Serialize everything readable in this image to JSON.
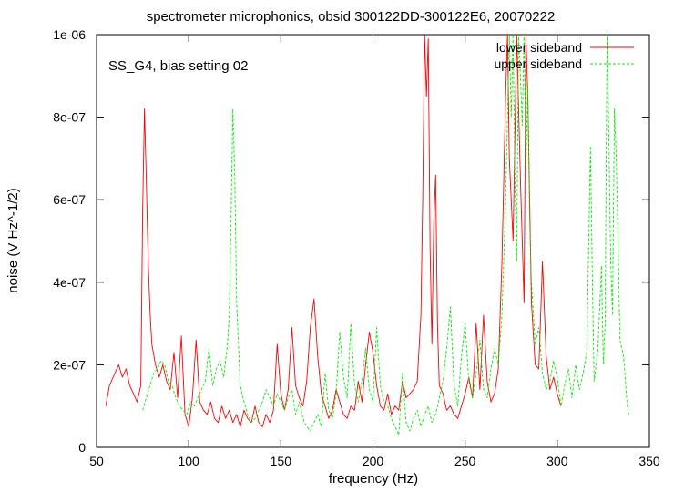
{
  "chart_data": {
    "type": "line",
    "title": "spectrometer microphonics, obsid 300122DD-300122E6, 20070222",
    "annotation": "SS_G4, bias setting 02",
    "xlabel": "frequency (Hz)",
    "ylabel": "noise (V Hz^-1/2)",
    "xlim": [
      50,
      350
    ],
    "ylim": [
      0,
      1e-06
    ],
    "x_ticks": [
      50,
      100,
      150,
      200,
      250,
      300,
      350
    ],
    "x_tick_labels": [
      "50",
      "100",
      "150",
      "200",
      "250",
      "300",
      "350"
    ],
    "y_ticks": [
      0,
      2e-07,
      4e-07,
      6e-07,
      8e-07,
      1e-06
    ],
    "y_tick_labels": [
      "0",
      "2e-07",
      "4e-07",
      "6e-07",
      "8e-07",
      "1e-06"
    ],
    "grid": false,
    "legend_position": "top-right",
    "series": [
      {
        "name": "lower sideband",
        "color": "#ff0000",
        "dashed": false,
        "points": [
          [
            55,
            1e-07
          ],
          [
            57,
            1.5e-07
          ],
          [
            60,
            1.8e-07
          ],
          [
            62,
            2e-07
          ],
          [
            64,
            1.7e-07
          ],
          [
            66,
            1.9e-07
          ],
          [
            68,
            1.5e-07
          ],
          [
            70,
            1.3e-07
          ],
          [
            72,
            1.1e-07
          ],
          [
            74,
            1.5e-07
          ],
          [
            75,
            5.7e-07
          ],
          [
            76,
            8.2e-07
          ],
          [
            77,
            6.5e-07
          ],
          [
            78,
            4.5e-07
          ],
          [
            79,
            3.3e-07
          ],
          [
            80,
            2.5e-07
          ],
          [
            82,
            2e-07
          ],
          [
            84,
            1.7e-07
          ],
          [
            86,
            2e-07
          ],
          [
            88,
            1.6e-07
          ],
          [
            90,
            1.4e-07
          ],
          [
            92,
            2.3e-07
          ],
          [
            94,
            1.2e-07
          ],
          [
            96,
            2.7e-07
          ],
          [
            98,
            8e-08
          ],
          [
            100,
            5e-08
          ],
          [
            102,
            1.2e-07
          ],
          [
            104,
            2.6e-07
          ],
          [
            106,
            1.1e-07
          ],
          [
            108,
            9e-08
          ],
          [
            110,
            8e-08
          ],
          [
            112,
            1.1e-07
          ],
          [
            114,
            7e-08
          ],
          [
            116,
            6e-08
          ],
          [
            118,
            1e-07
          ],
          [
            120,
            7e-08
          ],
          [
            122,
            9e-08
          ],
          [
            124,
            6e-08
          ],
          [
            126,
            8e-08
          ],
          [
            128,
            5e-08
          ],
          [
            130,
            9e-08
          ],
          [
            132,
            7e-08
          ],
          [
            134,
            6e-08
          ],
          [
            136,
            1e-07
          ],
          [
            138,
            6e-08
          ],
          [
            140,
            5e-08
          ],
          [
            142,
            8e-08
          ],
          [
            144,
            6e-08
          ],
          [
            146,
            9e-08
          ],
          [
            148,
            2.5e-07
          ],
          [
            150,
            1.3e-07
          ],
          [
            152,
            9e-08
          ],
          [
            154,
            1.4e-07
          ],
          [
            156,
            2.9e-07
          ],
          [
            158,
            1.5e-07
          ],
          [
            160,
            1.2e-07
          ],
          [
            162,
            1e-07
          ],
          [
            164,
            1.6e-07
          ],
          [
            166,
            2.9e-07
          ],
          [
            168,
            3.6e-07
          ],
          [
            170,
            2.2e-07
          ],
          [
            172,
            1.3e-07
          ],
          [
            174,
            1e-07
          ],
          [
            176,
            7e-08
          ],
          [
            178,
            9e-08
          ],
          [
            180,
            1.4e-07
          ],
          [
            182,
            1.1e-07
          ],
          [
            184,
            8e-08
          ],
          [
            186,
            7e-08
          ],
          [
            188,
            1e-07
          ],
          [
            190,
            9e-08
          ],
          [
            192,
            1.6e-07
          ],
          [
            194,
            1.1e-07
          ],
          [
            196,
            2e-07
          ],
          [
            198,
            2.8e-07
          ],
          [
            200,
            2.3e-07
          ],
          [
            202,
            1.5e-07
          ],
          [
            204,
            1e-07
          ],
          [
            206,
            9e-08
          ],
          [
            208,
            1.3e-07
          ],
          [
            210,
            8e-08
          ],
          [
            212,
            1e-07
          ],
          [
            214,
            9e-08
          ],
          [
            216,
            1.6e-07
          ],
          [
            218,
            1.2e-07
          ],
          [
            220,
            1.3e-07
          ],
          [
            222,
            1.4e-07
          ],
          [
            224,
            1.6e-07
          ],
          [
            226,
            3.2e-07
          ],
          [
            227,
            6e-07
          ],
          [
            228,
            1e-06
          ],
          [
            229,
            8.5e-07
          ],
          [
            230,
            9.9e-07
          ],
          [
            231,
            4.8e-07
          ],
          [
            232,
            2.5e-07
          ],
          [
            233,
            5.5e-07
          ],
          [
            234,
            6.6e-07
          ],
          [
            235,
            3e-07
          ],
          [
            236,
            1.5e-07
          ],
          [
            238,
            1.3e-07
          ],
          [
            240,
            9e-08
          ],
          [
            242,
            1e-07
          ],
          [
            244,
            8e-08
          ],
          [
            246,
            7e-08
          ],
          [
            248,
            1e-07
          ],
          [
            250,
            1.3e-07
          ],
          [
            252,
            1.7e-07
          ],
          [
            254,
            1.2e-07
          ],
          [
            256,
            3e-07
          ],
          [
            258,
            1.4e-07
          ],
          [
            260,
            3.2e-07
          ],
          [
            262,
            1.6e-07
          ],
          [
            264,
            1.1e-07
          ],
          [
            266,
            1.3e-07
          ],
          [
            268,
            1.9e-07
          ],
          [
            270,
            4.5e-07
          ],
          [
            272,
            8.6e-07
          ],
          [
            273,
            1e-06
          ],
          [
            274,
            7e-07
          ],
          [
            276,
            5e-07
          ],
          [
            278,
            1e-06
          ],
          [
            280,
            6.5e-07
          ],
          [
            282,
            3.5e-07
          ],
          [
            283,
            1e-06
          ],
          [
            284,
            8.5e-07
          ],
          [
            286,
            3.5e-07
          ],
          [
            288,
            2e-07
          ],
          [
            290,
            1.9e-07
          ],
          [
            292,
            4.5e-07
          ],
          [
            294,
            2.2e-07
          ],
          [
            296,
            1.4e-07
          ],
          [
            298,
            1.7e-07
          ],
          [
            300,
            1.3e-07
          ],
          [
            302,
            1e-07
          ]
        ]
      },
      {
        "name": "upper sideband",
        "color": "#00ee00",
        "dashed": true,
        "points": [
          [
            75,
            9e-08
          ],
          [
            77,
            1.2e-07
          ],
          [
            79,
            1.5e-07
          ],
          [
            81,
            1.8e-07
          ],
          [
            83,
            1.9e-07
          ],
          [
            85,
            2.1e-07
          ],
          [
            87,
            2e-07
          ],
          [
            89,
            1.6e-07
          ],
          [
            91,
            1.5e-07
          ],
          [
            93,
            1.2e-07
          ],
          [
            95,
            1e-07
          ],
          [
            97,
            9e-08
          ],
          [
            99,
            8e-08
          ],
          [
            101,
            1.1e-07
          ],
          [
            103,
            1e-07
          ],
          [
            105,
            1.2e-07
          ],
          [
            107,
            1.4e-07
          ],
          [
            109,
            1.6e-07
          ],
          [
            111,
            2.4e-07
          ],
          [
            113,
            1.5e-07
          ],
          [
            115,
            1.9e-07
          ],
          [
            117,
            2.1e-07
          ],
          [
            119,
            1.7e-07
          ],
          [
            121,
            2.5e-07
          ],
          [
            122,
            3.2e-07
          ],
          [
            123,
            5.6e-07
          ],
          [
            124,
            8.2e-07
          ],
          [
            125,
            6.5e-07
          ],
          [
            126,
            3.5e-07
          ],
          [
            128,
            1.5e-07
          ],
          [
            130,
            1.1e-07
          ],
          [
            132,
            8e-08
          ],
          [
            134,
            6e-08
          ],
          [
            136,
            7e-08
          ],
          [
            138,
            9e-08
          ],
          [
            140,
            1.1e-07
          ],
          [
            142,
            1.4e-07
          ],
          [
            144,
            1.2e-07
          ],
          [
            146,
            1e-07
          ],
          [
            148,
            1.3e-07
          ],
          [
            150,
            1.1e-07
          ],
          [
            152,
            9e-08
          ],
          [
            154,
            1.2e-07
          ],
          [
            156,
            1.4e-07
          ],
          [
            158,
            8e-08
          ],
          [
            160,
            1.1e-07
          ],
          [
            162,
            7e-08
          ],
          [
            164,
            5e-08
          ],
          [
            166,
            4e-08
          ],
          [
            168,
            6e-08
          ],
          [
            170,
            8e-08
          ],
          [
            172,
            5e-08
          ],
          [
            174,
            1.8e-07
          ],
          [
            176,
            9e-08
          ],
          [
            178,
            7e-08
          ],
          [
            180,
            1.3e-07
          ],
          [
            182,
            2.8e-07
          ],
          [
            184,
            1.7e-07
          ],
          [
            186,
            1.2e-07
          ],
          [
            188,
            3e-07
          ],
          [
            190,
            1.5e-07
          ],
          [
            192,
            1.1e-07
          ],
          [
            194,
            1.6e-07
          ],
          [
            196,
            2.4e-07
          ],
          [
            198,
            1.4e-07
          ],
          [
            200,
            1.1e-07
          ],
          [
            202,
            2.9e-07
          ],
          [
            204,
            1.5e-07
          ],
          [
            206,
            1.1e-07
          ],
          [
            208,
            1e-07
          ],
          [
            210,
            7e-08
          ],
          [
            212,
            5e-08
          ],
          [
            214,
            3e-08
          ],
          [
            216,
            1.8e-07
          ],
          [
            218,
            6e-08
          ],
          [
            220,
            4e-08
          ],
          [
            222,
            7e-08
          ],
          [
            224,
            9e-08
          ],
          [
            226,
            5e-08
          ],
          [
            228,
            8e-08
          ],
          [
            230,
            1e-07
          ],
          [
            232,
            6e-08
          ],
          [
            234,
            8e-08
          ],
          [
            236,
            1.2e-07
          ],
          [
            238,
            1.6e-07
          ],
          [
            240,
            2.4e-07
          ],
          [
            242,
            3.4e-07
          ],
          [
            244,
            1.5e-07
          ],
          [
            246,
            1e-07
          ],
          [
            248,
            2.2e-07
          ],
          [
            250,
            3e-07
          ],
          [
            252,
            1.6e-07
          ],
          [
            254,
            1.2e-07
          ],
          [
            256,
            1.8e-07
          ],
          [
            258,
            2.6e-07
          ],
          [
            260,
            1.4e-07
          ],
          [
            262,
            1.2e-07
          ],
          [
            264,
            1.9e-07
          ],
          [
            266,
            2.4e-07
          ],
          [
            268,
            2e-07
          ],
          [
            270,
            3.2e-07
          ],
          [
            272,
            6e-07
          ],
          [
            274,
            1e-06
          ],
          [
            275,
            8e-07
          ],
          [
            276,
            1e-06
          ],
          [
            277,
            6.5e-07
          ],
          [
            278,
            4.5e-07
          ],
          [
            279,
            1e-06
          ],
          [
            280,
            9e-07
          ],
          [
            281,
            7.8e-07
          ],
          [
            282,
            1e-06
          ],
          [
            283,
            6.8e-07
          ],
          [
            284,
            8.8e-07
          ],
          [
            285,
            5.5e-07
          ],
          [
            286,
            4e-07
          ],
          [
            288,
            2.5e-07
          ],
          [
            290,
            2.9e-07
          ],
          [
            292,
            1.8e-07
          ],
          [
            294,
            1.4e-07
          ],
          [
            296,
            1.6e-07
          ],
          [
            298,
            2.1e-07
          ],
          [
            300,
            1.7e-07
          ],
          [
            302,
            1e-07
          ],
          [
            304,
            1.5e-07
          ],
          [
            306,
            1.9e-07
          ],
          [
            308,
            1.2e-07
          ],
          [
            310,
            2e-07
          ],
          [
            312,
            1.4e-07
          ],
          [
            314,
            1.8e-07
          ],
          [
            316,
            2.3e-07
          ],
          [
            318,
            7.3e-07
          ],
          [
            319,
            4.2e-07
          ],
          [
            320,
            1.6e-07
          ],
          [
            322,
            2.3e-07
          ],
          [
            324,
            4.4e-07
          ],
          [
            325,
            2e-07
          ],
          [
            326,
            3e-07
          ],
          [
            327,
            1e-06
          ],
          [
            328,
            7.5e-07
          ],
          [
            329,
            4.5e-07
          ],
          [
            330,
            3.2e-07
          ],
          [
            331,
            8.2e-07
          ],
          [
            332,
            7e-07
          ],
          [
            333,
            5e-07
          ],
          [
            334,
            2.6e-07
          ],
          [
            336,
            2.2e-07
          ],
          [
            337,
            1.6e-07
          ],
          [
            338,
            1e-07
          ],
          [
            339,
            8e-08
          ]
        ]
      }
    ]
  }
}
